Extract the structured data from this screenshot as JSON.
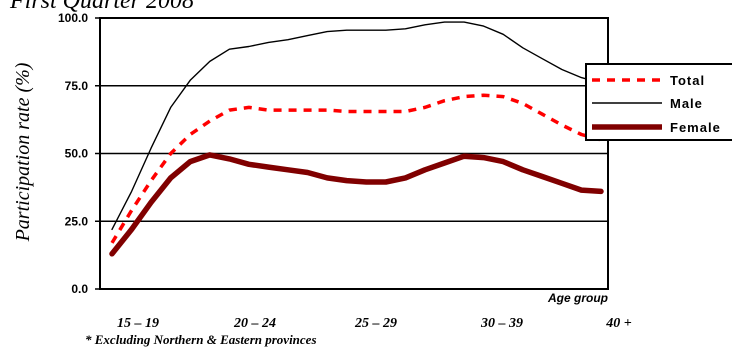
{
  "chart_data": {
    "type": "line",
    "title": "First Quarter 2008",
    "ylabel": "Participation rate (%)",
    "xlabel": "Age group",
    "footnote": "* Excluding Northern & Eastern provinces",
    "ylim": [
      0,
      100
    ],
    "yticks": [
      "0.0",
      "25.0",
      "50.0",
      "75.0",
      "100.0"
    ],
    "ytick_values": [
      0,
      25,
      50,
      75,
      100
    ],
    "grid": "horizontal",
    "legend_position": "right",
    "x_categories": [
      "15 – 19",
      "20 – 24",
      "25 – 29",
      "30 – 39",
      "40 +"
    ],
    "x": [
      15,
      16,
      17,
      18,
      19,
      20,
      21,
      22,
      23,
      24,
      25,
      26,
      27,
      28,
      29,
      30,
      31,
      32,
      33,
      34,
      35,
      36,
      37,
      38,
      39,
      40
    ],
    "series": [
      {
        "name": "Total",
        "color": "#ff0000",
        "style": "dashed",
        "values": [
          17,
          29,
          40,
          50,
          57,
          62,
          66,
          67,
          66,
          66,
          66,
          66,
          65.5,
          65.5,
          65.5,
          65.5,
          67,
          69.5,
          71,
          71.5,
          71,
          68.5,
          64.5,
          60.5,
          57,
          55
        ]
      },
      {
        "name": "Male",
        "color": "#000000",
        "style": "solid",
        "values": [
          22,
          36,
          52,
          67,
          77,
          84,
          88.5,
          89.5,
          91,
          92,
          93.5,
          95,
          95.5,
          95.5,
          95.5,
          96,
          97.5,
          98.5,
          98.5,
          97,
          94,
          89,
          85,
          81,
          78,
          76
        ]
      },
      {
        "name": "Female",
        "color": "#800000",
        "style": "thick",
        "values": [
          13,
          22,
          32,
          41,
          47,
          49.5,
          48,
          46,
          45,
          44,
          43,
          41,
          40,
          39.5,
          39.5,
          41,
          44,
          46.5,
          49,
          48.5,
          47,
          44,
          41.5,
          39,
          36.5,
          36
        ]
      }
    ]
  }
}
